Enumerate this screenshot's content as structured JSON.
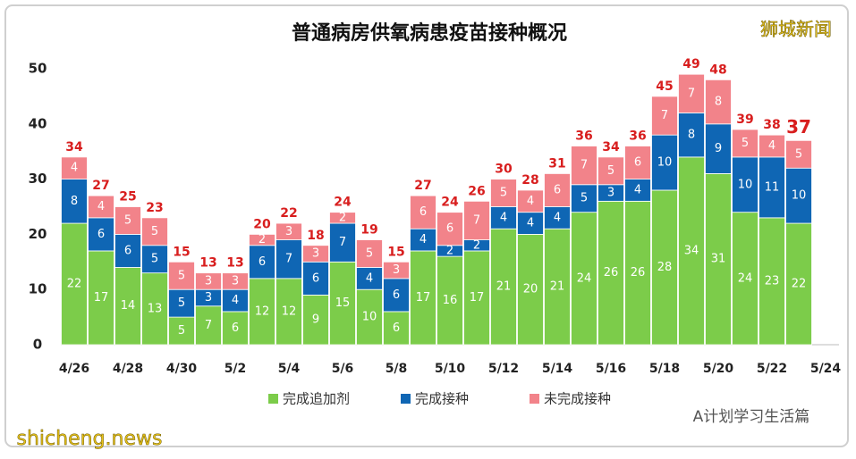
{
  "chart_data": {
    "type": "stacked_bar",
    "title": "普通病房供氧病患疫苗接种概况",
    "categories": [
      "4/26",
      null,
      "4/28",
      null,
      "4/30",
      null,
      "5/2",
      null,
      "5/4",
      null,
      "5/6",
      null,
      "5/8",
      null,
      "5/10",
      null,
      "5/12",
      null,
      "5/14",
      null,
      "5/16",
      null,
      "5/18",
      null,
      "5/20",
      null,
      "5/22",
      null,
      "5/24"
    ],
    "series": [
      {
        "name": "完成追加剂",
        "color": "#7ccc4a",
        "values": [
          22,
          17,
          14,
          13,
          5,
          7,
          6,
          12,
          12,
          9,
          15,
          10,
          6,
          17,
          16,
          17,
          21,
          20,
          21,
          24,
          26,
          26,
          28,
          34,
          31,
          24,
          23,
          22,
          null
        ]
      },
      {
        "name": "完成接种",
        "color": "#0f66b4",
        "values": [
          8,
          6,
          6,
          5,
          5,
          3,
          4,
          6,
          7,
          6,
          7,
          4,
          6,
          4,
          2,
          2,
          4,
          4,
          4,
          5,
          3,
          4,
          10,
          8,
          9,
          10,
          11,
          10,
          null
        ]
      },
      {
        "name": "未完成接种",
        "color": "#f2838a",
        "values": [
          4,
          4,
          5,
          5,
          5,
          3,
          3,
          2,
          3,
          3,
          2,
          5,
          3,
          6,
          6,
          7,
          5,
          4,
          6,
          7,
          5,
          6,
          7,
          7,
          8,
          5,
          4,
          5,
          null
        ]
      }
    ],
    "totals": [
      34,
      27,
      25,
      23,
      15,
      13,
      13,
      20,
      22,
      18,
      24,
      19,
      15,
      27,
      24,
      26,
      30,
      28,
      31,
      36,
      34,
      36,
      45,
      49,
      48,
      39,
      38,
      37,
      null
    ],
    "ylim": [
      0,
      50
    ],
    "yticks": [
      0,
      10,
      20,
      30,
      40,
      50
    ],
    "legend": "bottom",
    "watermarks": [
      "狮城新闻",
      "shicheng.news",
      "A计划学习生活篇"
    ]
  }
}
